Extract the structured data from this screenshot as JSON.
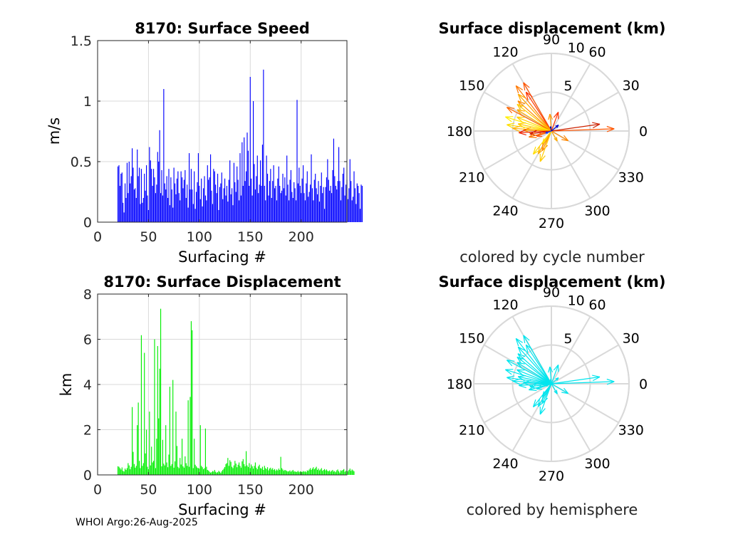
{
  "footer": "WHOI Argo:26-Aug-2025",
  "colors": {
    "speed_bar": "#0000ff",
    "displacement_bar": "#00ee00",
    "grid": "#d9d9d9",
    "cyan_arrow": "#00e5ee"
  },
  "chart_data": [
    {
      "type": "bar",
      "title": "8170: Surface Speed",
      "xlabel": "Surfacing #",
      "ylabel": "m/s",
      "xlim": [
        0,
        245
      ],
      "ylim": [
        0,
        1.5
      ],
      "xticks": [
        "0",
        "50",
        "100",
        "150",
        "200"
      ],
      "xtick_values": [
        0,
        50,
        100,
        150,
        200
      ],
      "yticks": [
        "0",
        "0.5",
        "1",
        "1.5"
      ],
      "ytick_values": [
        0,
        0.5,
        1,
        1.5
      ],
      "grid": true,
      "first_index": 20,
      "values": [
        0.46,
        0.47,
        0.3,
        0.4,
        0.41,
        0.16,
        0.08,
        0.32,
        0.2,
        0.49,
        0.24,
        0.5,
        0.32,
        0.38,
        0.61,
        0.45,
        0.27,
        0.28,
        0.2,
        0.6,
        0.38,
        0.45,
        0.15,
        0.44,
        0.16,
        0.2,
        0.4,
        0.26,
        0.47,
        0.22,
        0.1,
        0.62,
        0.51,
        0.44,
        0.3,
        0.44,
        0.37,
        0.24,
        0.31,
        0.58,
        0.5,
        0.76,
        0.24,
        0.43,
        0.22,
        1.1,
        0.32,
        0.27,
        0.38,
        0.2,
        0.44,
        0.14,
        0.37,
        0.27,
        0.12,
        0.45,
        0.32,
        0.23,
        0.36,
        0.42,
        0.24,
        0.18,
        0.42,
        0.37,
        0.28,
        0.35,
        0.43,
        0.2,
        0.31,
        0.12,
        0.57,
        0.27,
        0.44,
        0.27,
        0.15,
        0.42,
        0.11,
        0.25,
        0.33,
        0.57,
        0.3,
        0.19,
        0.36,
        0.13,
        0.28,
        0.38,
        0.22,
        0.18,
        0.47,
        0.35,
        0.37,
        0.56,
        0.26,
        0.15,
        0.44,
        0.42,
        0.31,
        0.24,
        0.4,
        0.1,
        0.29,
        0.32,
        0.41,
        0.19,
        0.28,
        0.36,
        0.22,
        0.3,
        0.17,
        0.35,
        0.51,
        0.23,
        0.28,
        0.14,
        0.49,
        0.33,
        0.25,
        0.46,
        0.35,
        0.18,
        0.57,
        0.22,
        0.66,
        0.3,
        0.7,
        0.34,
        0.42,
        0.74,
        0.59,
        0.3,
        1.2,
        0.36,
        0.22,
        1.0,
        0.48,
        0.27,
        0.38,
        0.55,
        0.24,
        0.31,
        0.51,
        0.3,
        0.64,
        1.26,
        0.3,
        0.18,
        0.55,
        0.4,
        0.22,
        0.34,
        0.44,
        0.2,
        0.34,
        0.47,
        0.28,
        0.3,
        0.18,
        0.36,
        0.46,
        0.3,
        0.24,
        0.26,
        0.4,
        0.28,
        0.37,
        0.22,
        0.55,
        0.31,
        0.18,
        0.35,
        0.43,
        0.25,
        0.2,
        0.33,
        0.28,
        0.18,
        1.01,
        0.32,
        0.45,
        0.3,
        0.24,
        0.36,
        0.47,
        0.24,
        0.18,
        0.32,
        0.42,
        0.21,
        0.25,
        0.31,
        0.56,
        0.28,
        0.18,
        0.35,
        0.4,
        0.28,
        0.23,
        0.34,
        0.17,
        0.3,
        0.41,
        0.24,
        0.29,
        0.11,
        0.29,
        0.37,
        0.52,
        0.35,
        0.26,
        0.3,
        0.24,
        0.43,
        0.69,
        0.38,
        0.3,
        0.27,
        0.34,
        0.62,
        0.34,
        0.18,
        0.29,
        0.4,
        0.45,
        0.22,
        0.31,
        0.35,
        0.19,
        0.28,
        0.52,
        0.34,
        0.18,
        0.21,
        0.42,
        0.28,
        0.15,
        0.32,
        0.3,
        0.24,
        0.11,
        0.31,
        0.3
      ]
    },
    {
      "type": "bar",
      "title": "8170: Surface Displacement",
      "xlabel": "Surfacing #",
      "ylabel": "km",
      "xlim": [
        0,
        245
      ],
      "ylim": [
        0,
        8
      ],
      "xticks": [
        "0",
        "50",
        "100",
        "150",
        "200"
      ],
      "xtick_values": [
        0,
        50,
        100,
        150,
        200
      ],
      "yticks": [
        "0",
        "2",
        "4",
        "6",
        "8"
      ],
      "ytick_values": [
        0,
        2,
        4,
        6,
        8
      ],
      "grid": true,
      "first_index": 20,
      "values": [
        0.38,
        0.36,
        0.3,
        0.24,
        0.33,
        0.18,
        0.15,
        0.28,
        0.22,
        0.3,
        0.52,
        0.42,
        0.25,
        0.36,
        3.0,
        1.02,
        0.48,
        0.32,
        0.4,
        2.2,
        3.2,
        0.62,
        0.3,
        6.18,
        0.4,
        0.52,
        5.4,
        0.95,
        2.0,
        0.36,
        0.25,
        2.8,
        0.42,
        1.25,
        0.55,
        0.62,
        6.0,
        0.3,
        1.6,
        5.7,
        2.5,
        4.7,
        7.35,
        0.38,
        1.55,
        0.5,
        0.42,
        2.2,
        0.55,
        0.34,
        0.9,
        3.9,
        0.4,
        0.48,
        4.2,
        0.32,
        0.6,
        2.8,
        1.28,
        0.36,
        0.3,
        0.75,
        0.46,
        1.6,
        0.38,
        0.32,
        0.82,
        0.52,
        0.4,
        3.3,
        0.36,
        3.45,
        6.8,
        6.4,
        0.3,
        1.6,
        0.45,
        0.38,
        0.32,
        0.3,
        0.28,
        2.2,
        0.4,
        0.34,
        0.25,
        0.3,
        2.05,
        0.36,
        0.22,
        0.19,
        0.14,
        0.1,
        0.12,
        0.17,
        0.15,
        0.22,
        0.14,
        0.1,
        0.12,
        0.18,
        0.14,
        0.09,
        0.16,
        0.22,
        0.28,
        0.35,
        0.48,
        0.52,
        0.75,
        0.4,
        0.65,
        0.58,
        0.36,
        0.3,
        0.42,
        0.62,
        0.5,
        0.34,
        0.45,
        0.55,
        0.4,
        0.32,
        0.6,
        0.7,
        0.48,
        0.38,
        1.05,
        0.42,
        0.35,
        0.52,
        0.3,
        0.46,
        0.38,
        0.28,
        0.4,
        0.55,
        0.32,
        0.25,
        0.38,
        0.45,
        0.3,
        0.28,
        0.36,
        0.22,
        0.4,
        0.3,
        0.26,
        0.34,
        0.2,
        0.28,
        0.32,
        0.24,
        0.3,
        0.22,
        0.26,
        0.18,
        0.24,
        0.2,
        0.28,
        0.22,
        0.8,
        0.3,
        0.24,
        0.18,
        0.22,
        0.2,
        0.17,
        0.15,
        0.16,
        0.2,
        0.14,
        0.18,
        0.22,
        0.15,
        0.16,
        0.13,
        0.14,
        0.18,
        0.12,
        0.16,
        0.15,
        0.13,
        0.17,
        0.14,
        0.16,
        0.12,
        0.2,
        0.18,
        0.24,
        0.3,
        0.22,
        0.28,
        0.34,
        0.25,
        0.3,
        0.36,
        0.22,
        0.28,
        0.2,
        0.24,
        0.3,
        0.18,
        0.22,
        0.26,
        0.2,
        0.24,
        0.18,
        0.16,
        0.2,
        0.14,
        0.18,
        0.22,
        0.15,
        0.17,
        0.12,
        0.2,
        0.24,
        0.16,
        0.1,
        0.2,
        0.18,
        0.22,
        0.26,
        0.14,
        0.18,
        0.2,
        0.16,
        0.22,
        0.28,
        0.18,
        0.24,
        0.2,
        0.16
      ]
    },
    {
      "type": "polar",
      "title": "Surface displacement (km)",
      "caption": "colored by cycle number",
      "rmax": 10,
      "radial_ticks": [
        "5",
        "10"
      ],
      "radial_tick_values": [
        5,
        10
      ],
      "angle_labels": [
        "0",
        "30",
        "60",
        "90",
        "120",
        "150",
        "180",
        "210",
        "240",
        "270",
        "300",
        "330"
      ],
      "angle_values": [
        0,
        30,
        60,
        90,
        120,
        150,
        180,
        210,
        240,
        270,
        300,
        330
      ],
      "arrows": [
        {
          "angle": 120,
          "r": 7.2,
          "color": "#ff5500"
        },
        {
          "angle": 123,
          "r": 6.0,
          "color": "#ff3300"
        },
        {
          "angle": 128,
          "r": 7.4,
          "color": "#ff7700"
        },
        {
          "angle": 132,
          "r": 6.4,
          "color": "#ffaa00"
        },
        {
          "angle": 138,
          "r": 5.8,
          "color": "#ff8800"
        },
        {
          "angle": 142,
          "r": 5.6,
          "color": "#ffcc00"
        },
        {
          "angle": 148,
          "r": 5.2,
          "color": "#ffaa00"
        },
        {
          "angle": 152,
          "r": 6.5,
          "color": "#ff6600"
        },
        {
          "angle": 158,
          "r": 4.8,
          "color": "#ffd000"
        },
        {
          "angle": 163,
          "r": 6.2,
          "color": "#ffee00"
        },
        {
          "angle": 168,
          "r": 4.4,
          "color": "#ffcc00"
        },
        {
          "angle": 172,
          "r": 5.8,
          "color": "#ffdd00"
        },
        {
          "angle": 176,
          "r": 5.0,
          "color": "#ffb000"
        },
        {
          "angle": 178,
          "r": 3.6,
          "color": "#ff9900"
        },
        {
          "angle": 183,
          "r": 4.2,
          "color": "#ee2200"
        },
        {
          "angle": 188,
          "r": 2.8,
          "color": "#cc1100"
        },
        {
          "angle": 195,
          "r": 3.0,
          "color": "#ff7700"
        },
        {
          "angle": 200,
          "r": 2.0,
          "color": "#ff5500"
        },
        {
          "angle": 235,
          "r": 2.0,
          "color": "#ffdd00"
        },
        {
          "angle": 240,
          "r": 3.4,
          "color": "#ffaa00"
        },
        {
          "angle": 245,
          "r": 2.8,
          "color": "#ff8800"
        },
        {
          "angle": 250,
          "r": 4.2,
          "color": "#ffcc00"
        },
        {
          "angle": 232,
          "r": 3.8,
          "color": "#ffdd00"
        },
        {
          "angle": 70,
          "r": 2.6,
          "color": "#ff3300"
        },
        {
          "angle": 95,
          "r": 2.2,
          "color": "#ff9900"
        },
        {
          "angle": 2,
          "r": 8.1,
          "color": "#ff5500"
        },
        {
          "angle": 8,
          "r": 6.3,
          "color": "#cc2200"
        },
        {
          "angle": 330,
          "r": 2.5,
          "color": "#ff8800"
        },
        {
          "angle": 300,
          "r": 1.5,
          "color": "#ffaa00"
        },
        {
          "angle": 40,
          "r": 1.2,
          "color": "#0000cc"
        },
        {
          "angle": 200,
          "r": 0.8,
          "color": "#0033ff"
        },
        {
          "angle": 100,
          "r": 0.6,
          "color": "#0000aa"
        }
      ]
    },
    {
      "type": "polar",
      "title": "Surface displacement (km)",
      "caption": "colored by hemisphere",
      "rmax": 10,
      "radial_ticks": [
        "5",
        "10"
      ],
      "radial_tick_values": [
        5,
        10
      ],
      "angle_labels": [
        "0",
        "30",
        "60",
        "90",
        "120",
        "150",
        "180",
        "210",
        "240",
        "270",
        "300",
        "330"
      ],
      "angle_values": [
        0,
        30,
        60,
        90,
        120,
        150,
        180,
        210,
        240,
        270,
        300,
        330
      ],
      "arrows": [
        {
          "angle": 120,
          "r": 7.2,
          "color": "#00e5ee"
        },
        {
          "angle": 123,
          "r": 6.0,
          "color": "#00e5ee"
        },
        {
          "angle": 128,
          "r": 7.4,
          "color": "#00e5ee"
        },
        {
          "angle": 132,
          "r": 6.4,
          "color": "#00e5ee"
        },
        {
          "angle": 138,
          "r": 5.8,
          "color": "#00e5ee"
        },
        {
          "angle": 142,
          "r": 5.6,
          "color": "#00e5ee"
        },
        {
          "angle": 148,
          "r": 5.2,
          "color": "#00e5ee"
        },
        {
          "angle": 152,
          "r": 6.5,
          "color": "#00e5ee"
        },
        {
          "angle": 158,
          "r": 4.8,
          "color": "#00e5ee"
        },
        {
          "angle": 163,
          "r": 6.2,
          "color": "#00e5ee"
        },
        {
          "angle": 168,
          "r": 4.4,
          "color": "#00e5ee"
        },
        {
          "angle": 172,
          "r": 5.8,
          "color": "#00e5ee"
        },
        {
          "angle": 176,
          "r": 5.0,
          "color": "#00e5ee"
        },
        {
          "angle": 178,
          "r": 3.6,
          "color": "#00e5ee"
        },
        {
          "angle": 183,
          "r": 4.2,
          "color": "#00e5ee"
        },
        {
          "angle": 188,
          "r": 2.8,
          "color": "#00e5ee"
        },
        {
          "angle": 195,
          "r": 3.0,
          "color": "#00e5ee"
        },
        {
          "angle": 200,
          "r": 2.0,
          "color": "#00e5ee"
        },
        {
          "angle": 235,
          "r": 2.0,
          "color": "#00e5ee"
        },
        {
          "angle": 240,
          "r": 3.4,
          "color": "#00e5ee"
        },
        {
          "angle": 245,
          "r": 2.8,
          "color": "#00e5ee"
        },
        {
          "angle": 250,
          "r": 4.2,
          "color": "#00e5ee"
        },
        {
          "angle": 232,
          "r": 3.8,
          "color": "#00e5ee"
        },
        {
          "angle": 70,
          "r": 2.6,
          "color": "#00e5ee"
        },
        {
          "angle": 95,
          "r": 2.2,
          "color": "#00e5ee"
        },
        {
          "angle": 2,
          "r": 8.1,
          "color": "#00e5ee"
        },
        {
          "angle": 8,
          "r": 6.3,
          "color": "#00e5ee"
        },
        {
          "angle": 330,
          "r": 2.5,
          "color": "#00e5ee"
        },
        {
          "angle": 300,
          "r": 1.5,
          "color": "#00e5ee"
        },
        {
          "angle": 40,
          "r": 1.2,
          "color": "#00e5ee"
        },
        {
          "angle": 200,
          "r": 0.8,
          "color": "#00e5ee"
        },
        {
          "angle": 100,
          "r": 0.6,
          "color": "#00e5ee"
        }
      ]
    }
  ]
}
